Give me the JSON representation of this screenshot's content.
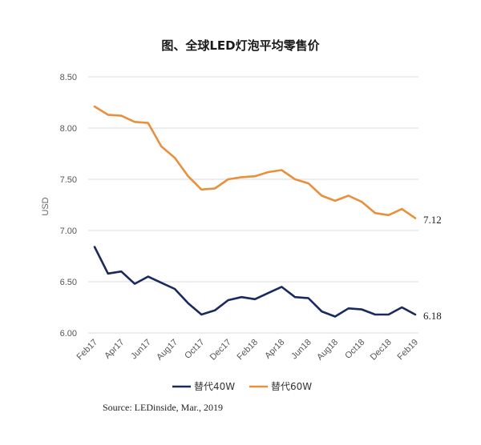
{
  "chart_data": {
    "type": "line",
    "title": "图、全球LED灯泡平均零售价",
    "ylabel": "USD",
    "xlabel": "",
    "ylim": [
      6.0,
      8.5
    ],
    "yticks": [
      "6.00",
      "6.50",
      "7.00",
      "7.50",
      "8.00",
      "8.50"
    ],
    "ytick_values": [
      6.0,
      6.5,
      7.0,
      7.5,
      8.0,
      8.5
    ],
    "x": [
      "Feb17",
      "Mar17",
      "Apr17",
      "May17",
      "Jun17",
      "Jul17",
      "Aug17",
      "Sep17",
      "Oct17",
      "Nov17",
      "Dec17",
      "Jan18",
      "Feb18",
      "Mar18",
      "Apr18",
      "May18",
      "Jun18",
      "Jul18",
      "Aug18",
      "Sep18",
      "Oct18",
      "Nov18",
      "Dec18",
      "Jan19",
      "Feb19"
    ],
    "xtick_labels": [
      "Feb17",
      "Apr17",
      "Jun17",
      "Aug17",
      "Oct17",
      "Dec17",
      "Feb18",
      "Apr18",
      "Jun18",
      "Aug18",
      "Oct18",
      "Dec18",
      "Feb19"
    ],
    "grid": true,
    "legend_position": "bottom",
    "series": [
      {
        "name": "替代40W",
        "color": "#1b2a5e",
        "values": [
          6.84,
          6.58,
          6.6,
          6.48,
          6.55,
          6.49,
          6.43,
          6.29,
          6.18,
          6.22,
          6.32,
          6.35,
          6.33,
          6.39,
          6.45,
          6.35,
          6.34,
          6.21,
          6.16,
          6.24,
          6.23,
          6.18,
          6.18,
          6.25,
          6.18
        ],
        "end_label": "6.18"
      },
      {
        "name": "替代60W",
        "color": "#e8903c",
        "values": [
          8.21,
          8.13,
          8.12,
          8.06,
          8.05,
          7.82,
          7.71,
          7.53,
          7.4,
          7.41,
          7.5,
          7.52,
          7.53,
          7.57,
          7.59,
          7.5,
          7.46,
          7.34,
          7.29,
          7.34,
          7.28,
          7.17,
          7.15,
          7.21,
          7.12
        ],
        "end_label": "7.12"
      }
    ],
    "source": "Source: LEDinside, Mar., 2019"
  }
}
